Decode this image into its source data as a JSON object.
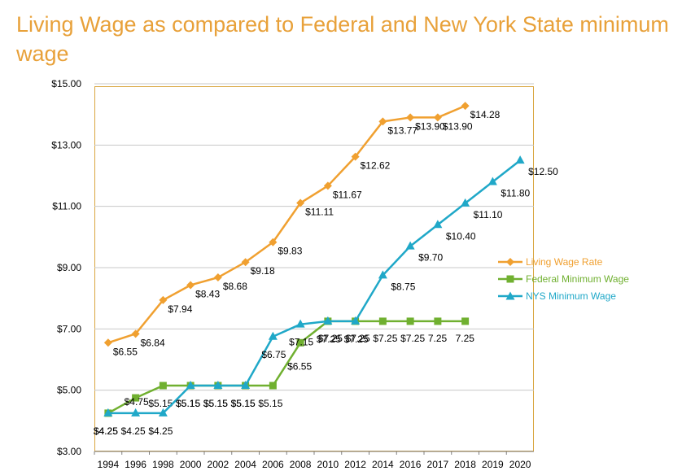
{
  "title": "Living Wage as compared to Federal and New York State minimum wage",
  "chart_data": {
    "type": "line",
    "title": "Living Wage as compared to Federal and New York State minimum wage",
    "xlabel": "",
    "ylabel": "",
    "categories": [
      "1994",
      "1996",
      "1998",
      "2000",
      "2002",
      "2004",
      "2006",
      "2008",
      "2010",
      "2012",
      "2014",
      "2016",
      "2017",
      "2018",
      "2019",
      "2020"
    ],
    "ylim": [
      3,
      15
    ],
    "yticks": [
      "$3.00",
      "$5.00",
      "$7.00",
      "$9.00",
      "$11.00",
      "$13.00",
      "$15.00"
    ],
    "ytick_values": [
      3,
      5,
      7,
      9,
      11,
      13,
      15
    ],
    "grid": "horizontal",
    "legend_position": "right",
    "series": [
      {
        "name": "Living Wage Rate",
        "color": "#f0a030",
        "marker": "diamond",
        "values": [
          6.55,
          6.84,
          7.94,
          8.43,
          8.68,
          9.18,
          9.83,
          11.11,
          11.67,
          12.62,
          13.77,
          13.9,
          13.9,
          14.28,
          null,
          null
        ],
        "labels": [
          "$6.55",
          "$6.84",
          "$7.94",
          "$8.43",
          "$8.68",
          "$9.18",
          "$9.83",
          "$11.11",
          "$11.67",
          "$12.62",
          "$13.77",
          "$13.90",
          "$13.90",
          "$14.28",
          "",
          ""
        ]
      },
      {
        "name": "Federal Minimum Wage",
        "color": "#70b030",
        "marker": "square",
        "values": [
          4.25,
          4.75,
          5.15,
          5.15,
          5.15,
          5.15,
          5.15,
          6.55,
          7.25,
          7.25,
          7.25,
          7.25,
          7.25,
          7.25,
          null,
          null
        ],
        "labels": [
          "$4.25",
          "$4.75",
          "$5.15",
          "$5.15",
          "$5.15",
          "$5.15",
          "$5.15",
          "$6.55",
          "$7.25",
          "$7.25",
          "$7.25",
          "$7.25",
          "7.25",
          "7.25",
          "",
          ""
        ]
      },
      {
        "name": "NYS Minimum Wage",
        "color": "#20a8c8",
        "marker": "triangle",
        "values": [
          4.25,
          4.25,
          4.25,
          5.15,
          5.15,
          5.15,
          6.75,
          7.15,
          7.25,
          7.25,
          8.75,
          9.7,
          10.4,
          11.1,
          11.8,
          12.5
        ],
        "labels": [
          "$4.25",
          "$4.25",
          "$4.25",
          "$5.15",
          "$5.15",
          "$5.15",
          "$6.75",
          "$7.15",
          "$7.25",
          "$7.25",
          "$8.75",
          "$9.70",
          "$10.40",
          "$11.10",
          "$11.80",
          "$12.50"
        ]
      }
    ]
  }
}
